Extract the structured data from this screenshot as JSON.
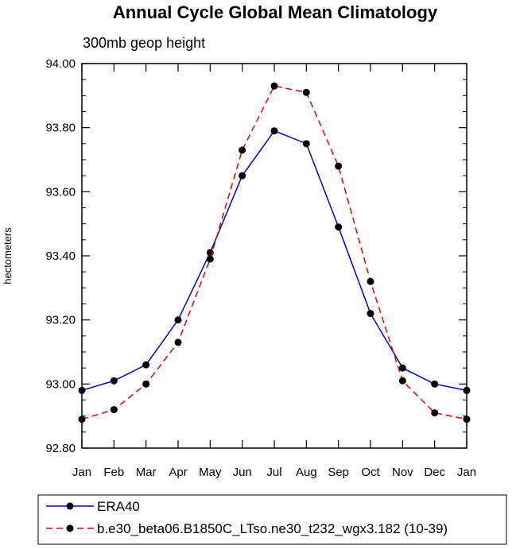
{
  "chart_data": {
    "type": "line",
    "title": "Annual Cycle Global Mean Climatology",
    "subtitle": "300mb geop height",
    "xlabel": "",
    "ylabel": "hectometers",
    "categories": [
      "Jan",
      "Feb",
      "Mar",
      "Apr",
      "May",
      "Jun",
      "Jul",
      "Aug",
      "Sep",
      "Oct",
      "Nov",
      "Dec",
      "Jan"
    ],
    "ylim": [
      92.8,
      94.0
    ],
    "yticks": [
      92.8,
      93.0,
      93.2,
      93.4,
      93.6,
      93.8,
      94.0
    ],
    "ytick_labels": [
      "92.80",
      "93.00",
      "93.20",
      "93.40",
      "93.60",
      "93.80",
      "94.00"
    ],
    "series": [
      {
        "name": "ERA40",
        "color": "#0000cc",
        "dash": "solid",
        "values": [
          92.98,
          93.01,
          93.06,
          93.2,
          93.41,
          93.65,
          93.79,
          93.75,
          93.49,
          93.22,
          93.05,
          93.0,
          92.98
        ]
      },
      {
        "name": "b.e30_beta06.B1850C_LTso.ne30_t232_wgx3.182 (10-39)",
        "color": "#e60000",
        "dash": "dashed",
        "values": [
          92.89,
          92.92,
          93.0,
          93.13,
          93.39,
          93.73,
          93.93,
          93.91,
          93.68,
          93.32,
          93.01,
          92.91,
          92.89
        ]
      }
    ],
    "legend_position": "bottom"
  }
}
